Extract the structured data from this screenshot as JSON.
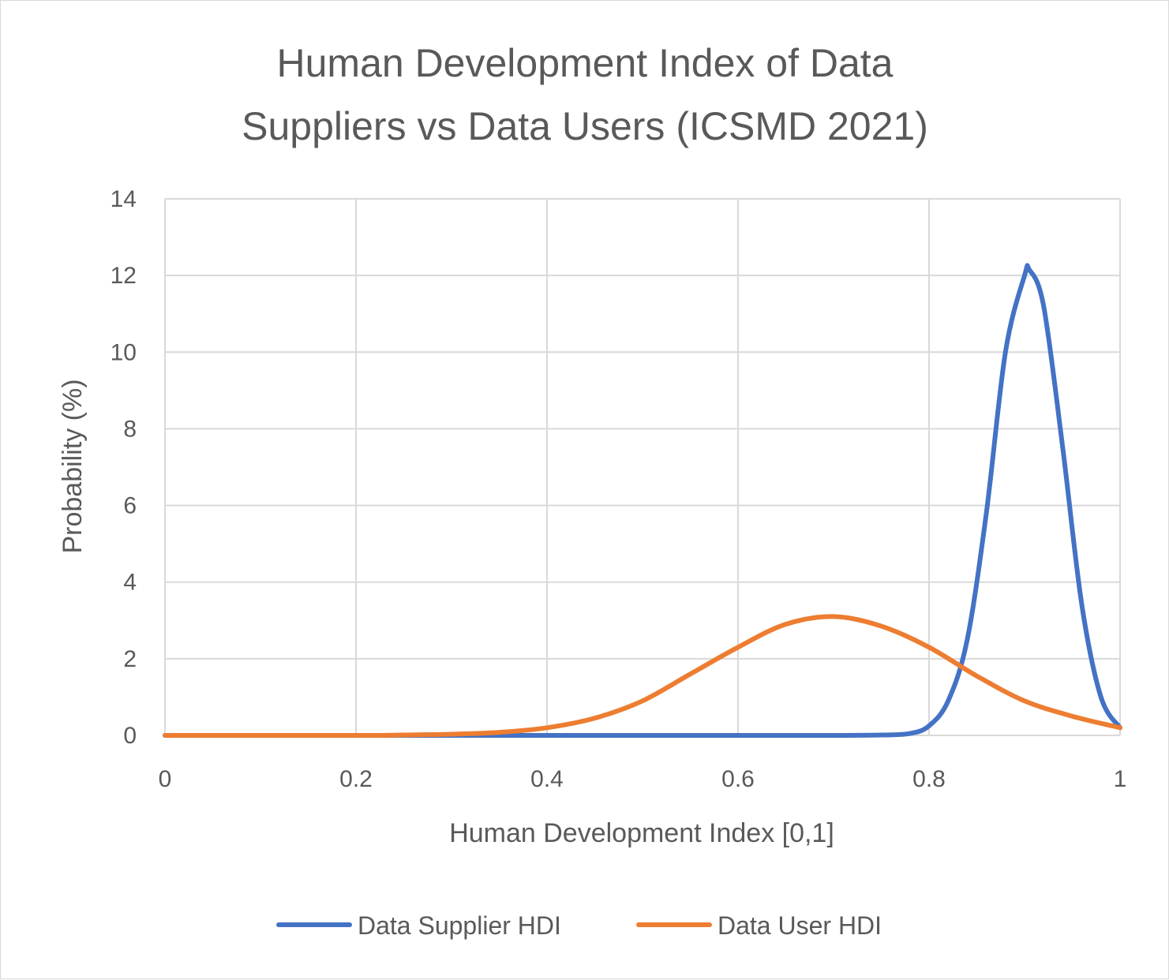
{
  "chart_data": {
    "type": "line",
    "title_lines": [
      "Human Development Index of Data",
      "Suppliers vs Data Users (ICSMD 2021)"
    ],
    "xlabel": "Human Development Index [0,1]",
    "ylabel": "Probability (%)",
    "xlim": [
      0,
      1
    ],
    "ylim": [
      0,
      14
    ],
    "xticks": [
      "0",
      "0.2",
      "0.4",
      "0.6",
      "0.8",
      "1"
    ],
    "yticks": [
      "0",
      "2",
      "4",
      "6",
      "8",
      "10",
      "12",
      "14"
    ],
    "grid": true,
    "legend_position": "bottom",
    "series": [
      {
        "name": "Data Supplier HDI",
        "color": "#4472c4",
        "x": [
          0,
          0.2,
          0.4,
          0.6,
          0.7,
          0.75,
          0.78,
          0.8,
          0.82,
          0.84,
          0.86,
          0.88,
          0.9,
          0.905,
          0.92,
          0.94,
          0.96,
          0.98,
          1.0
        ],
        "y": [
          0,
          0,
          0,
          0,
          0,
          0.01,
          0.05,
          0.25,
          0.9,
          2.5,
          5.8,
          10.0,
          12.0,
          12.15,
          11.2,
          7.5,
          3.4,
          1.0,
          0.2
        ]
      },
      {
        "name": "Data User HDI",
        "color": "#ed7d31",
        "x": [
          0,
          0.2,
          0.25,
          0.3,
          0.35,
          0.4,
          0.45,
          0.5,
          0.55,
          0.6,
          0.65,
          0.7,
          0.75,
          0.8,
          0.85,
          0.9,
          0.95,
          1.0
        ],
        "y": [
          0,
          0,
          0.01,
          0.03,
          0.08,
          0.2,
          0.45,
          0.9,
          1.6,
          2.3,
          2.9,
          3.1,
          2.85,
          2.3,
          1.55,
          0.9,
          0.5,
          0.2
        ]
      }
    ]
  }
}
